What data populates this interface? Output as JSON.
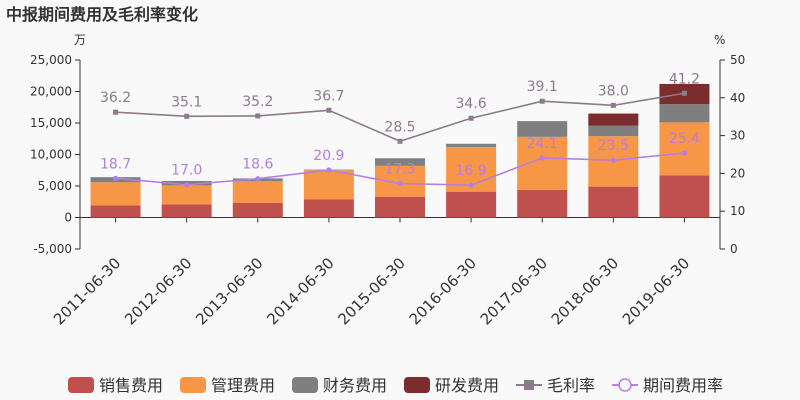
{
  "chart_data": {
    "type": "bar",
    "title": "中报期间费用及毛利率变化",
    "left_unit": "万",
    "right_unit": "%",
    "categories": [
      "2011-06-30",
      "2012-06-30",
      "2013-06-30",
      "2014-06-30",
      "2015-06-30",
      "2016-06-30",
      "2017-06-30",
      "2018-06-30",
      "2019-06-30"
    ],
    "stacked_series": [
      {
        "name": "销售费用",
        "color": "#c0504d",
        "values": [
          1900,
          2100,
          2300,
          2900,
          3300,
          4100,
          4400,
          4900,
          6700
        ]
      },
      {
        "name": "管理费用",
        "color": "#f79646",
        "values": [
          3700,
          3000,
          3500,
          4600,
          4900,
          7100,
          8400,
          8000,
          8400
        ]
      },
      {
        "name": "财务费用",
        "color": "#7f7f7f",
        "values": [
          800,
          700,
          400,
          100,
          1200,
          500,
          2500,
          1700,
          2900
        ]
      },
      {
        "name": "研发费用",
        "color": "#7b2c2c",
        "values": [
          0,
          0,
          0,
          0,
          0,
          0,
          0,
          1900,
          3200
        ]
      }
    ],
    "line_series": [
      {
        "name": "毛利率",
        "color": "#8c7b8c",
        "marker": "square",
        "values": [
          36.2,
          35.1,
          35.2,
          36.7,
          28.5,
          34.6,
          39.1,
          38.0,
          41.2
        ],
        "labels": [
          "36.2",
          "35.1",
          "35.2",
          "36.7",
          "28.5",
          "34.6",
          "39.1",
          "38.0",
          "41.2"
        ]
      },
      {
        "name": "期间费用率",
        "color": "#b57ee0",
        "marker": "circle",
        "values": [
          18.7,
          17.0,
          18.6,
          20.9,
          17.3,
          16.9,
          24.1,
          23.5,
          25.4
        ],
        "labels": [
          "18.7",
          "17.0",
          "18.6",
          "20.9",
          "17.3",
          "16.9",
          "24.1",
          "23.5",
          "25.4"
        ]
      }
    ],
    "left_axis": {
      "min": -5000,
      "max": 25000,
      "ticks": [
        -5000,
        0,
        5000,
        10000,
        15000,
        20000,
        25000
      ],
      "tick_labels": [
        "-5,000",
        "0",
        "5,000",
        "10,000",
        "15,000",
        "20,000",
        "25,000"
      ]
    },
    "right_axis": {
      "min": 0,
      "max": 50,
      "ticks": [
        0,
        10,
        20,
        30,
        40,
        50
      ],
      "tick_labels": [
        "0",
        "10",
        "20",
        "30",
        "40",
        "50"
      ]
    },
    "grid": false,
    "legend_position": "bottom"
  }
}
